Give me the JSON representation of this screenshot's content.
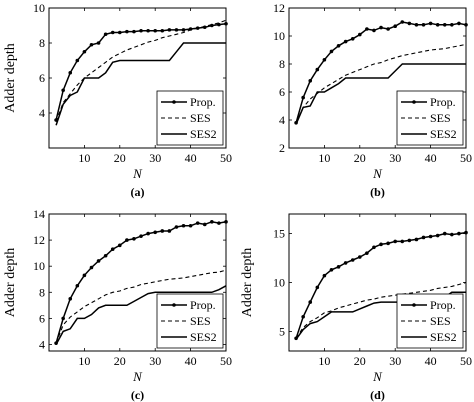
{
  "chart_data": [
    {
      "type": "line",
      "panel_label": "(a)",
      "ylabel": "Adder depth",
      "xlabel": "N",
      "xlim": [
        0,
        50
      ],
      "ylim": [
        2,
        10
      ],
      "xticks": [
        "10",
        "20",
        "30",
        "40",
        "50"
      ],
      "yticks": [
        "4",
        "6",
        "8",
        "10"
      ],
      "x": [
        2,
        4,
        6,
        8,
        10,
        12,
        14,
        16,
        18,
        20,
        22,
        24,
        26,
        28,
        30,
        32,
        34,
        36,
        38,
        40,
        42,
        44,
        46,
        48,
        50
      ],
      "series": [
        {
          "name": "Prop.",
          "values": [
            3.6,
            5.3,
            6.3,
            7.0,
            7.5,
            7.9,
            8.0,
            8.5,
            8.6,
            8.6,
            8.65,
            8.65,
            8.7,
            8.7,
            8.7,
            8.7,
            8.75,
            8.75,
            8.75,
            8.8,
            8.85,
            8.9,
            9.0,
            9.05,
            9.1
          ]
        },
        {
          "name": "SES",
          "values": [
            3.5,
            4.6,
            5.1,
            5.6,
            6.0,
            6.3,
            6.6,
            6.9,
            7.2,
            7.4,
            7.6,
            7.75,
            7.9,
            8.05,
            8.15,
            8.3,
            8.4,
            8.5,
            8.6,
            8.75,
            8.85,
            8.95,
            9.05,
            9.15,
            9.3
          ]
        },
        {
          "name": "SES2",
          "values": [
            3.3,
            4.5,
            5.0,
            5.2,
            6.0,
            6.0,
            6.0,
            6.3,
            6.9,
            7.0,
            7.0,
            7.0,
            7.0,
            7.0,
            7.0,
            7.0,
            7.0,
            7.5,
            8.0,
            8.0,
            8.0,
            8.0,
            8.0,
            8.0,
            8.0
          ]
        }
      ]
    },
    {
      "type": "line",
      "panel_label": "(b)",
      "ylabel": "",
      "xlabel": "N",
      "xlim": [
        0,
        50
      ],
      "ylim": [
        2,
        12
      ],
      "xticks": [
        "10",
        "20",
        "30",
        "40",
        "50"
      ],
      "yticks": [
        "2",
        "4",
        "6",
        "8",
        "10",
        "12"
      ],
      "x": [
        2,
        4,
        6,
        8,
        10,
        12,
        14,
        16,
        18,
        20,
        22,
        24,
        26,
        28,
        30,
        32,
        34,
        36,
        38,
        40,
        42,
        44,
        46,
        48,
        50
      ],
      "series": [
        {
          "name": "Prop.",
          "values": [
            3.8,
            5.6,
            6.8,
            7.6,
            8.3,
            8.9,
            9.3,
            9.6,
            9.8,
            10.1,
            10.5,
            10.4,
            10.6,
            10.5,
            10.7,
            11.0,
            10.9,
            10.8,
            10.8,
            10.9,
            10.8,
            10.8,
            10.8,
            10.9,
            10.8
          ]
        },
        {
          "name": "SES",
          "values": [
            3.8,
            4.9,
            5.5,
            5.9,
            6.3,
            6.6,
            6.9,
            7.2,
            7.4,
            7.6,
            7.8,
            8.0,
            8.1,
            8.3,
            8.45,
            8.6,
            8.7,
            8.8,
            8.9,
            9.0,
            9.05,
            9.1,
            9.2,
            9.3,
            9.4
          ]
        },
        {
          "name": "SES2",
          "values": [
            3.7,
            4.9,
            5.0,
            6.0,
            6.0,
            6.3,
            6.6,
            7.0,
            7.0,
            7.0,
            7.0,
            7.0,
            7.0,
            7.0,
            7.5,
            8.0,
            8.0,
            8.0,
            8.0,
            8.0,
            8.0,
            8.0,
            8.0,
            8.0,
            8.0
          ]
        }
      ]
    },
    {
      "type": "line",
      "panel_label": "(c)",
      "ylabel": "Adder depth",
      "xlabel": "N",
      "xlim": [
        0,
        50
      ],
      "ylim": [
        3.5,
        14
      ],
      "xticks": [
        "10",
        "20",
        "30",
        "40",
        "50"
      ],
      "yticks": [
        "4",
        "6",
        "8",
        "10",
        "12",
        "14"
      ],
      "x": [
        2,
        4,
        6,
        8,
        10,
        12,
        14,
        16,
        18,
        20,
        22,
        24,
        26,
        28,
        30,
        32,
        34,
        36,
        38,
        40,
        42,
        44,
        46,
        48,
        50
      ],
      "series": [
        {
          "name": "Prop.",
          "values": [
            4.1,
            6.0,
            7.5,
            8.5,
            9.3,
            9.9,
            10.4,
            10.8,
            11.3,
            11.6,
            12.0,
            12.1,
            12.3,
            12.5,
            12.6,
            12.7,
            12.7,
            13.0,
            13.1,
            13.1,
            13.3,
            13.2,
            13.4,
            13.3,
            13.4
          ]
        },
        {
          "name": "SES",
          "values": [
            4.1,
            5.5,
            6.1,
            6.5,
            6.9,
            7.2,
            7.5,
            7.8,
            8.0,
            8.1,
            8.3,
            8.4,
            8.6,
            8.7,
            8.8,
            8.9,
            9.0,
            9.05,
            9.1,
            9.2,
            9.3,
            9.4,
            9.5,
            9.55,
            9.7
          ]
        },
        {
          "name": "SES2",
          "values": [
            4.0,
            5.0,
            5.2,
            6.0,
            6.0,
            6.3,
            6.8,
            7.0,
            7.0,
            7.0,
            7.0,
            7.3,
            7.6,
            7.9,
            8.0,
            8.0,
            8.0,
            8.0,
            8.0,
            8.0,
            8.0,
            8.0,
            8.0,
            8.2,
            8.5
          ]
        }
      ]
    },
    {
      "type": "line",
      "panel_label": "(d)",
      "ylabel": "Adder depth",
      "xlabel": "N",
      "xlim": [
        0,
        50
      ],
      "ylim": [
        3,
        17
      ],
      "xticks": [
        "10",
        "20",
        "30",
        "40",
        "50"
      ],
      "yticks": [
        "5",
        "10",
        "15"
      ],
      "x": [
        2,
        4,
        6,
        8,
        10,
        12,
        14,
        16,
        18,
        20,
        22,
        24,
        26,
        28,
        30,
        32,
        34,
        36,
        38,
        40,
        42,
        44,
        46,
        48,
        50
      ],
      "series": [
        {
          "name": "Prop.",
          "values": [
            4.3,
            6.5,
            8.0,
            9.5,
            10.7,
            11.3,
            11.6,
            12.0,
            12.3,
            12.6,
            13.0,
            13.6,
            13.9,
            14.0,
            14.2,
            14.2,
            14.3,
            14.4,
            14.6,
            14.7,
            14.8,
            15.0,
            14.9,
            15.0,
            15.1
          ]
        },
        {
          "name": "SES",
          "values": [
            4.3,
            5.4,
            6.0,
            6.4,
            6.9,
            7.1,
            7.4,
            7.6,
            7.8,
            8.0,
            8.2,
            8.3,
            8.5,
            8.6,
            8.7,
            8.8,
            8.9,
            9.0,
            9.1,
            9.2,
            9.4,
            9.5,
            9.6,
            9.8,
            10.0
          ]
        },
        {
          "name": "SES2",
          "values": [
            4.2,
            5.2,
            5.8,
            6.0,
            6.5,
            7.0,
            7.0,
            7.0,
            7.0,
            7.3,
            7.6,
            7.9,
            8.0,
            8.0,
            8.0,
            8.0,
            8.0,
            8.0,
            8.0,
            8.0,
            8.0,
            8.5,
            9.0,
            9.0,
            9.0
          ]
        }
      ]
    }
  ]
}
